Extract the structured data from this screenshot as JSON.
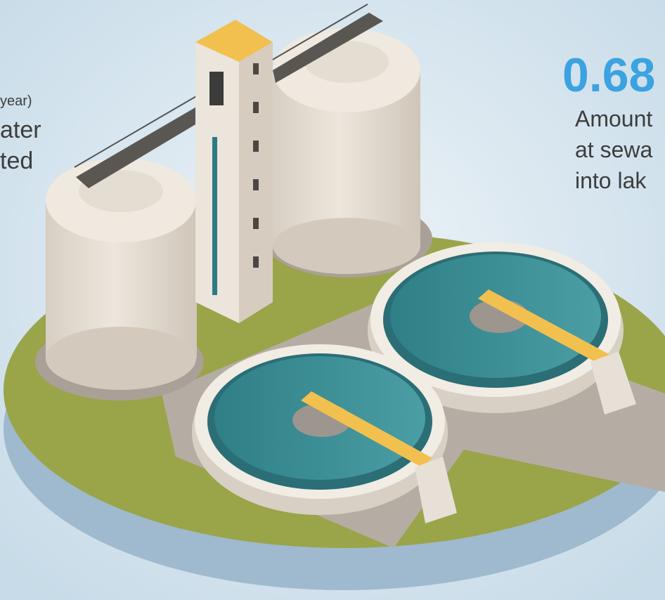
{
  "left_text": {
    "line1": "year)",
    "line2": "ater",
    "line3": "ted"
  },
  "right_text": {
    "value": "0.68",
    "line1": "Amount",
    "line2": "at sewa",
    "line3": "into lak"
  }
}
